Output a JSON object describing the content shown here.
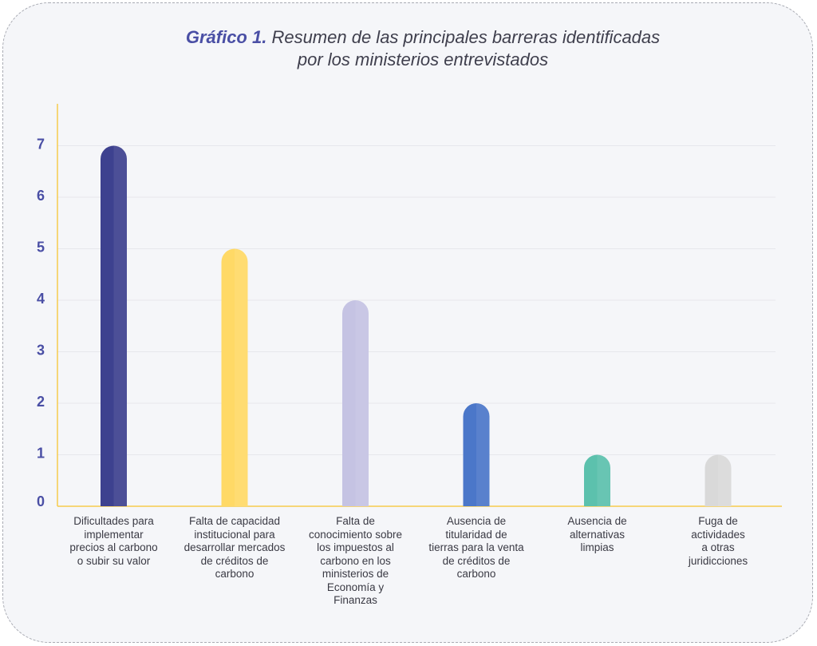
{
  "chart_data": {
    "type": "bar",
    "title_lead": "Gráfico 1.",
    "title_line1": "Resumen de las principales barreras identificadas",
    "title_line2": "por los ministerios entrevistados",
    "categories": [
      "Dificultades para implementar precios al carbono o subir su valor",
      "Falta de capacidad institucional para desarrollar mercados de créditos de carbono",
      "Falta de conocimiento sobre los impuestos al carbono en los ministerios de Economía y Finanzas",
      "Ausencia de titularidad de tierras para la venta de créditos de carbono",
      "Ausencia de alternativas limpias",
      "Fuga de actividades a otras juridicciones"
    ],
    "category_lines": [
      [
        "Dificultades para",
        "implementar",
        "precios al carbono",
        "o subir su valor"
      ],
      [
        "Falta de capacidad",
        "institucional para",
        "desarrollar mercados",
        "de créditos de",
        "carbono"
      ],
      [
        "Falta de",
        "conocimiento sobre",
        "los impuestos al",
        "carbono en los",
        "ministerios de",
        "Economía y",
        "Finanzas"
      ],
      [
        "Ausencia de",
        "titularidad de",
        "tierras para la venta",
        "de créditos de",
        "carbono"
      ],
      [
        "Ausencia de",
        "alternativas",
        "limpias"
      ],
      [
        "Fuga de",
        "actividades",
        "a otras",
        "juridicciones"
      ]
    ],
    "values": [
      7,
      5,
      4,
      2,
      1,
      1
    ],
    "bar_colors": [
      "#3d418f",
      "#ffd966",
      "#c5c3e3",
      "#4b77c9",
      "#5cc1ad",
      "#d9d9d9"
    ],
    "yticks": [
      "0",
      "1",
      "2",
      "3",
      "4",
      "5",
      "6",
      "7"
    ],
    "ylim": [
      0,
      7.8
    ],
    "grid": true,
    "axis_color": "#f7cb4d",
    "tick_color": "#4a4fa5"
  }
}
